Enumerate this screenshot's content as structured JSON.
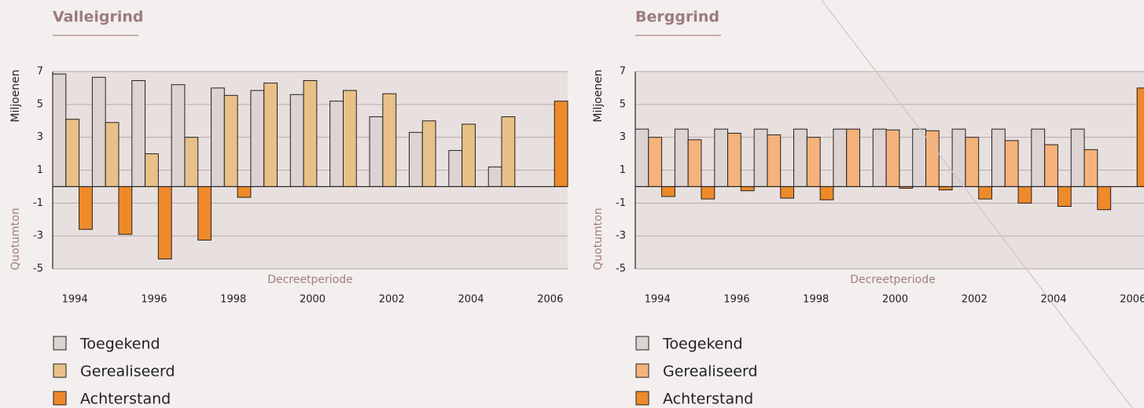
{
  "chart_data": [
    {
      "type": "bar",
      "title": "Valleigrind",
      "ylabel": "Miljoenen",
      "ylabel_negative": "Quotumton",
      "xlabel": "Decreetperiode",
      "categories": [
        "1994",
        null,
        "1996",
        null,
        "1998",
        null,
        "2000",
        null,
        "2002",
        null,
        "2004",
        null,
        "2006"
      ],
      "series": [
        {
          "name": "Toegekend",
          "color": "#dcd3d2",
          "values": [
            6.85,
            6.65,
            6.45,
            6.2,
            6.0,
            5.85,
            5.6,
            5.2,
            4.25,
            3.3,
            2.2,
            1.2,
            null
          ]
        },
        {
          "name": "Gerealiseerd",
          "color": "#e8c088",
          "values": [
            4.1,
            3.9,
            2.0,
            3.0,
            5.55,
            6.3,
            6.45,
            5.85,
            5.65,
            4.0,
            3.8,
            4.25,
            null
          ]
        },
        {
          "name": "Achterstand",
          "color": "#ee8a2a",
          "values": [
            -2.6,
            -2.9,
            -4.4,
            -3.25,
            -0.65,
            null,
            null,
            null,
            null,
            null,
            null,
            null,
            5.2
          ]
        }
      ],
      "ylim": [
        -5,
        7
      ],
      "yticks": [
        -5,
        -3,
        -1,
        1,
        3,
        5,
        7
      ],
      "grid": true
    },
    {
      "type": "bar",
      "title": "Berggrind",
      "ylabel": "Miljoenen",
      "ylabel_negative": "Quotumton",
      "xlabel": "Decreetperiode",
      "categories": [
        "1994",
        null,
        "1996",
        null,
        "1998",
        null,
        "2000",
        null,
        "2002",
        null,
        "2004",
        null,
        "2006"
      ],
      "series": [
        {
          "name": "Toegekend",
          "color": "#dcd3d2",
          "values": [
            3.5,
            3.5,
            3.5,
            3.5,
            3.5,
            3.5,
            3.5,
            3.5,
            3.5,
            3.5,
            3.5,
            3.5,
            null
          ]
        },
        {
          "name": "Gerealiseerd",
          "color": "#f5b27a",
          "values": [
            3.0,
            2.85,
            3.25,
            3.15,
            3.0,
            3.5,
            3.45,
            3.4,
            3.0,
            2.8,
            2.55,
            2.25,
            null
          ]
        },
        {
          "name": "Achterstand",
          "color": "#ee8a2a",
          "values": [
            -0.6,
            -0.75,
            -0.25,
            -0.7,
            -0.8,
            null,
            -0.1,
            -0.2,
            -0.75,
            -1.0,
            -1.2,
            -1.4,
            6.0
          ]
        }
      ],
      "ylim": [
        -5,
        7
      ],
      "yticks": [
        -5,
        -3,
        -1,
        1,
        3,
        5,
        7
      ],
      "grid": true
    }
  ]
}
